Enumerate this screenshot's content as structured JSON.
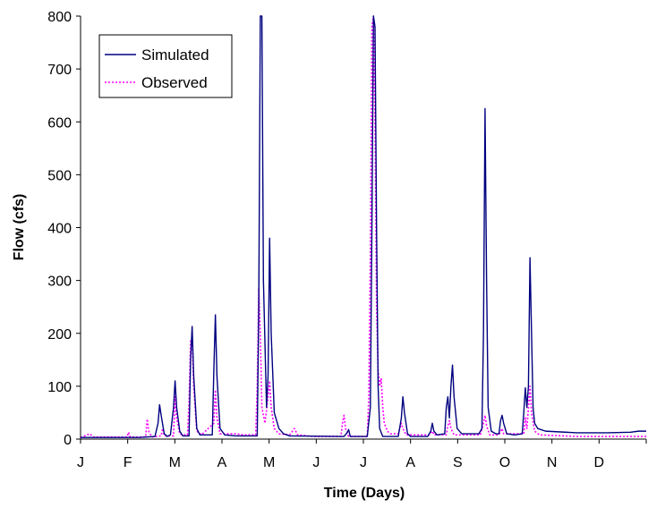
{
  "chart_data": {
    "type": "line",
    "title": "",
    "xlabel": "Time (Days)",
    "ylabel": "Flow (cfs)",
    "x_unit": "day of year",
    "xlim": [
      0,
      365
    ],
    "ylim": [
      0,
      800
    ],
    "yticks": [
      0,
      100,
      200,
      300,
      400,
      500,
      600,
      700,
      800
    ],
    "xtick_labels": [
      "J",
      "F",
      "M",
      "A",
      "M",
      "J",
      "J",
      "A",
      "S",
      "O",
      "N",
      "D"
    ],
    "legend_position": "top-left",
    "grid": false,
    "series": [
      {
        "name": "Simulated",
        "color": "#000080",
        "style": "solid",
        "points": [
          [
            0,
            3
          ],
          [
            38,
            3
          ],
          [
            48,
            5
          ],
          [
            50,
            30
          ],
          [
            51,
            65
          ],
          [
            52,
            45
          ],
          [
            54,
            10
          ],
          [
            56,
            5
          ],
          [
            58,
            8
          ],
          [
            60,
            60
          ],
          [
            61,
            110
          ],
          [
            62,
            60
          ],
          [
            64,
            15
          ],
          [
            66,
            6
          ],
          [
            70,
            6
          ],
          [
            71,
            150
          ],
          [
            72,
            213
          ],
          [
            73,
            120
          ],
          [
            75,
            20
          ],
          [
            77,
            8
          ],
          [
            85,
            8
          ],
          [
            86,
            130
          ],
          [
            87,
            235
          ],
          [
            88,
            120
          ],
          [
            90,
            20
          ],
          [
            93,
            8
          ],
          [
            100,
            6
          ],
          [
            114,
            6
          ],
          [
            115,
            250
          ],
          [
            116,
            800
          ],
          [
            117,
            800
          ],
          [
            118,
            300
          ],
          [
            120,
            60
          ],
          [
            121,
            120
          ],
          [
            122,
            380
          ],
          [
            123,
            200
          ],
          [
            125,
            50
          ],
          [
            128,
            20
          ],
          [
            131,
            10
          ],
          [
            135,
            6
          ],
          [
            170,
            5
          ],
          [
            172,
            12
          ],
          [
            173,
            18
          ],
          [
            174,
            5
          ],
          [
            185,
            5
          ],
          [
            187,
            60
          ],
          [
            188,
            400
          ],
          [
            189,
            800
          ],
          [
            190,
            780
          ],
          [
            191,
            400
          ],
          [
            192,
            100
          ],
          [
            193,
            20
          ],
          [
            195,
            5
          ],
          [
            205,
            5
          ],
          [
            207,
            40
          ],
          [
            208,
            80
          ],
          [
            209,
            50
          ],
          [
            211,
            10
          ],
          [
            213,
            5
          ],
          [
            224,
            5
          ],
          [
            226,
            15
          ],
          [
            227,
            30
          ],
          [
            228,
            15
          ],
          [
            230,
            8
          ],
          [
            235,
            10
          ],
          [
            236,
            60
          ],
          [
            237,
            80
          ],
          [
            238,
            40
          ],
          [
            239,
            100
          ],
          [
            240,
            140
          ],
          [
            241,
            80
          ],
          [
            243,
            20
          ],
          [
            246,
            10
          ],
          [
            257,
            10
          ],
          [
            259,
            20
          ],
          [
            260,
            200
          ],
          [
            261,
            625
          ],
          [
            262,
            300
          ],
          [
            263,
            60
          ],
          [
            265,
            15
          ],
          [
            268,
            10
          ],
          [
            270,
            10
          ],
          [
            271,
            35
          ],
          [
            272,
            45
          ],
          [
            273,
            30
          ],
          [
            275,
            10
          ],
          [
            280,
            8
          ],
          [
            285,
            10
          ],
          [
            286,
            50
          ],
          [
            287,
            97
          ],
          [
            288,
            60
          ],
          [
            289,
            100
          ],
          [
            290,
            343
          ],
          [
            291,
            200
          ],
          [
            292,
            60
          ],
          [
            293,
            30
          ],
          [
            295,
            20
          ],
          [
            300,
            15
          ],
          [
            320,
            12
          ],
          [
            340,
            12
          ],
          [
            355,
            13
          ],
          [
            360,
            15
          ],
          [
            365,
            15
          ]
        ]
      },
      {
        "name": "Observed",
        "color": "#ff00ff",
        "style": "dotted",
        "points": [
          [
            0,
            3
          ],
          [
            6,
            10
          ],
          [
            8,
            4
          ],
          [
            30,
            4
          ],
          [
            31,
            13
          ],
          [
            32,
            4
          ],
          [
            42,
            4
          ],
          [
            43,
            38
          ],
          [
            44,
            15
          ],
          [
            46,
            4
          ],
          [
            52,
            6
          ],
          [
            53,
            20
          ],
          [
            54,
            6
          ],
          [
            60,
            6
          ],
          [
            61,
            80
          ],
          [
            62,
            40
          ],
          [
            64,
            10
          ],
          [
            66,
            8
          ],
          [
            69,
            8
          ],
          [
            70,
            70
          ],
          [
            71,
            185
          ],
          [
            72,
            190
          ],
          [
            73,
            100
          ],
          [
            75,
            15
          ],
          [
            78,
            8
          ],
          [
            86,
            30
          ],
          [
            87,
            93
          ],
          [
            88,
            40
          ],
          [
            90,
            10
          ],
          [
            100,
            10
          ],
          [
            105,
            8
          ],
          [
            113,
            8
          ],
          [
            114,
            100
          ],
          [
            115,
            285
          ],
          [
            116,
            200
          ],
          [
            117,
            60
          ],
          [
            119,
            30
          ],
          [
            121,
            80
          ],
          [
            122,
            110
          ],
          [
            123,
            60
          ],
          [
            125,
            20
          ],
          [
            128,
            10
          ],
          [
            135,
            8
          ],
          [
            138,
            20
          ],
          [
            140,
            8
          ],
          [
            150,
            5
          ],
          [
            168,
            5
          ],
          [
            169,
            30
          ],
          [
            170,
            45
          ],
          [
            171,
            20
          ],
          [
            173,
            5
          ],
          [
            185,
            5
          ],
          [
            186,
            80
          ],
          [
            187,
            350
          ],
          [
            188,
            780
          ],
          [
            189,
            800
          ],
          [
            190,
            600
          ],
          [
            191,
            250
          ],
          [
            192,
            130
          ],
          [
            193,
            100
          ],
          [
            194,
            115
          ],
          [
            195,
            60
          ],
          [
            196,
            30
          ],
          [
            198,
            15
          ],
          [
            200,
            10
          ],
          [
            205,
            10
          ],
          [
            207,
            30
          ],
          [
            208,
            20
          ],
          [
            210,
            8
          ],
          [
            225,
            8
          ],
          [
            227,
            15
          ],
          [
            228,
            8
          ],
          [
            236,
            8
          ],
          [
            237,
            25
          ],
          [
            238,
            35
          ],
          [
            239,
            20
          ],
          [
            241,
            8
          ],
          [
            258,
            8
          ],
          [
            260,
            30
          ],
          [
            261,
            45
          ],
          [
            262,
            25
          ],
          [
            264,
            8
          ],
          [
            270,
            8
          ],
          [
            272,
            20
          ],
          [
            273,
            10
          ],
          [
            286,
            10
          ],
          [
            287,
            40
          ],
          [
            288,
            20
          ],
          [
            289,
            60
          ],
          [
            290,
            100
          ],
          [
            291,
            50
          ],
          [
            293,
            15
          ],
          [
            296,
            8
          ],
          [
            320,
            5
          ],
          [
            365,
            5
          ]
        ]
      }
    ]
  }
}
